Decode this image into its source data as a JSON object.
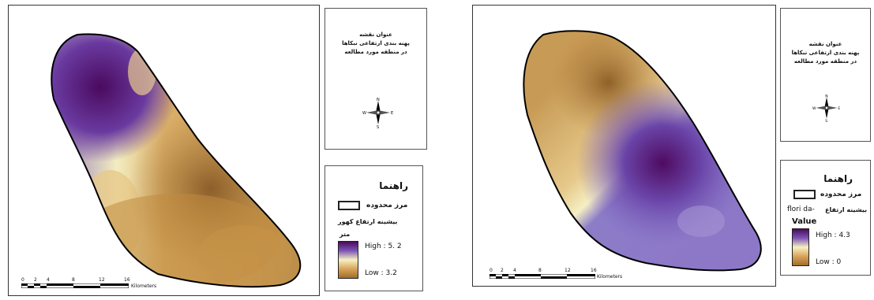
{
  "left_map": {
    "title_lines": [
      "عنوان نقشه",
      "پهنه بندی ارتفاعی نبکاها",
      "در منطقه مورد مطالعه"
    ],
    "compass": {
      "n": "N",
      "s": "S",
      "e": "E",
      "w": "W"
    },
    "legend": {
      "heading": "راهنما",
      "boundary_label": "مرز محدوده",
      "layer_title": "بیشینه ارتفاع کهور",
      "unit": "متر",
      "high_label": "High : 5. 2",
      "low_label": "Low : 3.2"
    },
    "scalebar": {
      "ticks": [
        "0",
        "2",
        "4",
        "8",
        "12",
        "16"
      ],
      "unit": "Kilometers"
    }
  },
  "right_map": {
    "title_lines": [
      "عنوان نقشه",
      "پهنه بندی ارتفاعی نبکاها",
      "در منطقه مورد مطالعه"
    ],
    "compass": {
      "n": "N",
      "s": "S",
      "e": "E",
      "w": "W"
    },
    "legend": {
      "heading": "راهنما",
      "boundary_label": "مرز محدوده",
      "layer_title": "بیشینه ارتفاع",
      "layer_prefix": "flori da-",
      "value_label": "Value",
      "high_label": "High : 4.3",
      "low_label": "Low : 0"
    },
    "scalebar": {
      "ticks": [
        "0",
        "2",
        "4",
        "8",
        "12",
        "16"
      ],
      "unit": "Kilometers"
    }
  }
}
